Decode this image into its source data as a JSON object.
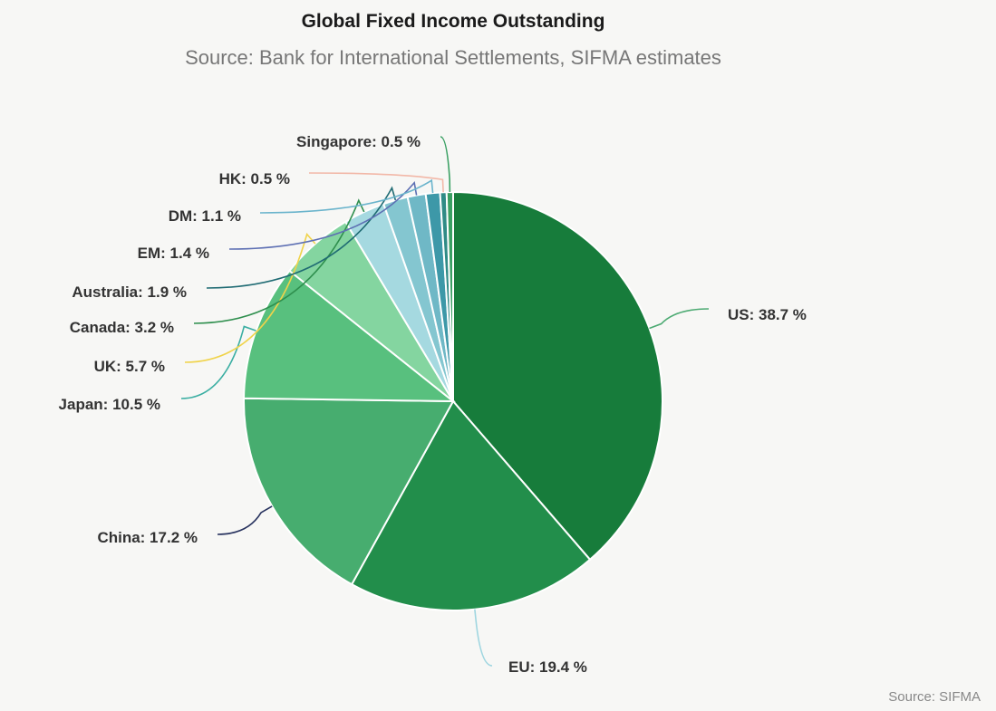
{
  "chart_data": {
    "type": "pie",
    "title": "Global Fixed Income Outstanding",
    "subtitle": "Source: Bank for International Settlements, SIFMA estimates",
    "credit": "Source: SIFMA",
    "slices": [
      {
        "label": "US",
        "value": 38.7,
        "label_text": "US: 38.7 %",
        "color": "#177c3b",
        "connector_color": "#4caa72"
      },
      {
        "label": "EU",
        "value": 19.4,
        "label_text": "EU: 19.4 %",
        "color": "#228e4b",
        "connector_color": "#9fd6e0"
      },
      {
        "label": "China",
        "value": 17.2,
        "label_text": "China: 17.2 %",
        "color": "#47ad6f",
        "connector_color": "#27325e"
      },
      {
        "label": "Japan",
        "value": 10.5,
        "label_text": "Japan: 10.5 %",
        "color": "#58c07e",
        "connector_color": "#3aaea2"
      },
      {
        "label": "UK",
        "value": 5.7,
        "label_text": "UK: 5.7 %",
        "color": "#84d5a0",
        "connector_color": "#f0d34a"
      },
      {
        "label": "Canada",
        "value": 3.2,
        "label_text": "Canada: 3.2 %",
        "color": "#a5d9e0",
        "connector_color": "#2f8f4e"
      },
      {
        "label": "Australia",
        "value": 1.9,
        "label_text": "Australia: 1.9 %",
        "color": "#84c6d0",
        "connector_color": "#1f6b73"
      },
      {
        "label": "EM",
        "value": 1.4,
        "label_text": "EM: 1.4 %",
        "color": "#6fb8c6",
        "connector_color": "#5d6fb3"
      },
      {
        "label": "DM",
        "value": 1.1,
        "label_text": "DM: 1.1 %",
        "color": "#3d98a8",
        "connector_color": "#6ab4cc"
      },
      {
        "label": "HK",
        "value": 0.5,
        "label_text": "HK: 0.5 %",
        "color": "#2f8b86",
        "connector_color": "#f2b8a8"
      },
      {
        "label": "Singapore",
        "value": 0.5,
        "label_text": "Singapore: 0.5 %",
        "color": "#3aa063",
        "connector_color": "#3aa063"
      }
    ]
  }
}
